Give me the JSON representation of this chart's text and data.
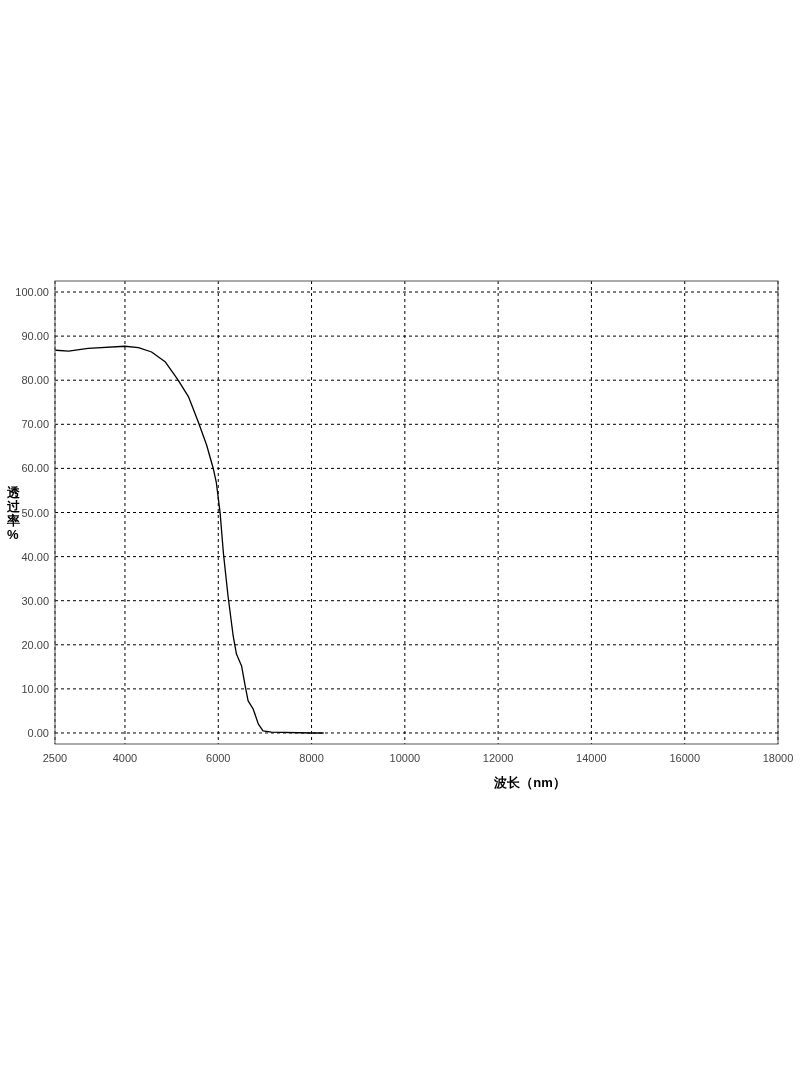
{
  "chart_data": {
    "type": "line",
    "xlabel": "波长（nm）",
    "ylabel": "透过率%",
    "xlim": [
      2500,
      18000
    ],
    "xticks": [
      2500,
      4000,
      6000,
      8000,
      10000,
      12000,
      14000,
      16000,
      18000
    ],
    "ylim": [
      -2.5,
      102.5
    ],
    "yticks": [
      {
        "value": 0,
        "label": "0.00"
      },
      {
        "value": 10,
        "label": "10.00"
      },
      {
        "value": 20,
        "label": "20.00"
      },
      {
        "value": 30,
        "label": "30.00"
      },
      {
        "value": 40,
        "label": "40.00"
      },
      {
        "value": 50,
        "label": "50.00"
      },
      {
        "value": 60,
        "label": "60.00"
      },
      {
        "value": 70,
        "label": "70.00"
      },
      {
        "value": 80,
        "label": "80.00"
      },
      {
        "value": 90,
        "label": "90.00"
      },
      {
        "value": 100,
        "label": "100.00"
      }
    ],
    "grid": true,
    "line_style": "solid",
    "marker": "none",
    "series": [
      {
        "color": "#000000",
        "x": [
          2520,
          2790,
          3210,
          4000,
          4290,
          4570,
          4860,
          5140,
          5360,
          5570,
          5750,
          5890,
          5960,
          6040,
          6110,
          6210,
          6320,
          6390,
          6500,
          6570,
          6640,
          6750,
          6860,
          6960,
          7140,
          8000,
          8250
        ],
        "values": [
          86.8,
          86.6,
          87.2,
          87.7,
          87.4,
          86.4,
          84.2,
          80.0,
          76.3,
          70.6,
          65.3,
          60.1,
          56.7,
          49.9,
          40.8,
          31.0,
          22.0,
          17.9,
          15.2,
          11.1,
          7.3,
          5.4,
          2.0,
          0.5,
          0.2,
          0,
          0
        ]
      }
    ]
  }
}
